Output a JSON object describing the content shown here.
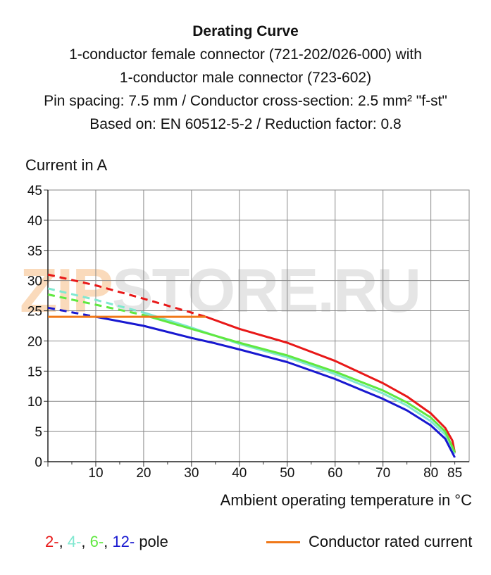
{
  "title": "Derating Curve",
  "subtitle_lines": [
    "1-conductor female connector (721-202/026-000) with",
    "1-conductor male connector (723-602)",
    "Pin spacing: 7.5 mm / Conductor cross-section: 2.5 mm² \"f-st\"",
    "Based on: EN 60512-5-2 / Reduction factor: 0.8"
  ],
  "watermark": {
    "part1": "ZIP",
    "part2": "STORE.RU"
  },
  "legend": {
    "pole_items": [
      {
        "text": "2-",
        "color": "#e81818"
      },
      {
        "text": "4-",
        "color": "#80e8d0"
      },
      {
        "text": "6-",
        "color": "#60e840"
      },
      {
        "text": "12-",
        "color": "#1818d0"
      }
    ],
    "pole_suffix": "pole",
    "rated_label": "Conductor rated current",
    "rated_color": "#f07818"
  },
  "chart_data": {
    "type": "line",
    "title": "Derating Curve",
    "xlabel": "Ambient operating temperature in °C",
    "ylabel": "Current in A",
    "xlim": [
      0,
      88
    ],
    "ylim": [
      0,
      45
    ],
    "x_ticks": [
      10,
      20,
      30,
      40,
      50,
      60,
      70,
      80,
      85
    ],
    "y_ticks": [
      0,
      5,
      10,
      15,
      20,
      25,
      30,
      35,
      40,
      45
    ],
    "grid": true,
    "series": [
      {
        "name": "2-",
        "color": "#e81818",
        "dashed": [
          [
            0,
            31
          ],
          [
            10,
            29.2
          ],
          [
            20,
            27
          ],
          [
            33,
            24.0
          ]
        ],
        "solid": [
          [
            33,
            24.0
          ],
          [
            40,
            22
          ],
          [
            50,
            19.7
          ],
          [
            60,
            16.7
          ],
          [
            70,
            13.0
          ],
          [
            75,
            10.8
          ],
          [
            80,
            8.0
          ],
          [
            83,
            5.6
          ],
          [
            84.5,
            3.5
          ],
          [
            85,
            1.5
          ]
        ]
      },
      {
        "name": "4-",
        "color": "#80e8d0",
        "dashed": [
          [
            0,
            28.7
          ],
          [
            10,
            26.8
          ],
          [
            20,
            24.7
          ]
        ],
        "solid": [
          [
            20,
            24.7
          ],
          [
            30,
            22.2
          ],
          [
            40,
            19.5
          ],
          [
            50,
            17.3
          ],
          [
            60,
            14.5
          ],
          [
            70,
            11.3
          ],
          [
            75,
            9.3
          ],
          [
            80,
            6.7
          ],
          [
            83,
            4.5
          ],
          [
            85,
            1.3
          ]
        ]
      },
      {
        "name": "6-",
        "color": "#60e840",
        "dashed": [
          [
            0,
            27.7
          ],
          [
            10,
            26.0
          ],
          [
            20,
            24.3
          ]
        ],
        "solid": [
          [
            20,
            24.3
          ],
          [
            30,
            22.0
          ],
          [
            40,
            19.7
          ],
          [
            50,
            17.6
          ],
          [
            60,
            14.9
          ],
          [
            70,
            11.8
          ],
          [
            75,
            9.8
          ],
          [
            80,
            7.3
          ],
          [
            83,
            5.0
          ],
          [
            85,
            1.6
          ]
        ]
      },
      {
        "name": "12-",
        "color": "#1818d0",
        "dashed": [
          [
            0,
            25.5
          ],
          [
            10,
            24.0
          ]
        ],
        "solid": [
          [
            10,
            24.0
          ],
          [
            20,
            22.5
          ],
          [
            30,
            20.5
          ],
          [
            35,
            19.6
          ],
          [
            40,
            18.6
          ],
          [
            50,
            16.5
          ],
          [
            60,
            13.7
          ],
          [
            70,
            10.4
          ],
          [
            75,
            8.5
          ],
          [
            80,
            6.0
          ],
          [
            83,
            3.8
          ],
          [
            85,
            0.7
          ]
        ]
      },
      {
        "name": "Conductor rated current",
        "color": "#f07818",
        "dashed": [],
        "solid": [
          [
            0,
            24
          ],
          [
            33,
            24
          ]
        ]
      }
    ]
  }
}
